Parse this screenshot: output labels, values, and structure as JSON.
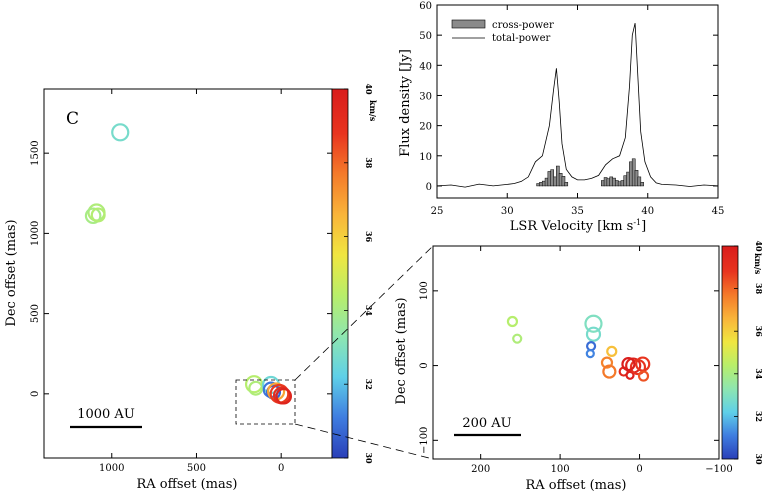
{
  "colors": {
    "axis": "#000000",
    "bar_fill": "#8a8a8a",
    "line": "#000000",
    "colorscale": [
      "#2a3fb8",
      "#3f7de0",
      "#5fd0e8",
      "#8ee6b0",
      "#b8ee6a",
      "#f0e640",
      "#f9b43a",
      "#f47a2a",
      "#e8341f",
      "#d91c1c"
    ]
  },
  "chart_data": [
    {
      "id": "spectrum",
      "type": "bar",
      "xlabel": "LSR Velocity [km s",
      "xlabel_sup": "-1",
      "xlabel_close": "]",
      "ylabel": "Flux density [Jy]",
      "xlim": [
        25,
        45
      ],
      "ylim": [
        -4,
        60
      ],
      "xticks": [
        "25",
        "30",
        "35",
        "40",
        "45"
      ],
      "yticks": [
        "0",
        "10",
        "20",
        "30",
        "40",
        "50",
        "60"
      ],
      "legend": {
        "placement": "top-left",
        "entries": [
          "cross-power",
          "total-power"
        ]
      },
      "series": [
        {
          "name": "cross-power",
          "kind": "bar",
          "bin_width": 0.22,
          "x": [
            32.2,
            32.4,
            32.6,
            32.8,
            33.0,
            33.2,
            33.4,
            33.6,
            33.8,
            34.0,
            34.2,
            36.8,
            37.0,
            37.2,
            37.4,
            37.6,
            37.8,
            38.0,
            38.2,
            38.4,
            38.6,
            38.8,
            39.0,
            39.2,
            39.4,
            39.6
          ],
          "values": [
            0.8,
            1.2,
            1.6,
            2.6,
            4.8,
            5.4,
            3.0,
            6.6,
            4.2,
            3.2,
            1.2,
            1.8,
            2.8,
            2.4,
            3.0,
            2.6,
            1.8,
            1.4,
            1.8,
            3.4,
            4.6,
            8.0,
            9.0,
            5.2,
            3.0,
            1.2
          ]
        },
        {
          "name": "total-power",
          "kind": "line",
          "x": [
            25.0,
            26.0,
            27.0,
            28.0,
            29.0,
            30.0,
            30.5,
            31.0,
            31.5,
            32.0,
            32.5,
            33.0,
            33.3,
            33.5,
            33.7,
            33.9,
            34.2,
            34.6,
            35.0,
            35.5,
            36.0,
            36.5,
            37.0,
            37.5,
            38.0,
            38.4,
            38.7,
            38.9,
            39.1,
            39.3,
            39.5,
            39.8,
            40.2,
            40.6,
            41.0,
            42.0,
            43.0,
            44.0,
            45.0
          ],
          "values": [
            0.0,
            0.3,
            -0.4,
            0.6,
            0.0,
            0.5,
            0.8,
            1.5,
            3.0,
            8.0,
            10.0,
            20.0,
            32.0,
            39.0,
            28.0,
            14.0,
            5.5,
            3.0,
            2.0,
            2.0,
            2.5,
            3.5,
            7.0,
            9.0,
            10.0,
            16.0,
            33.0,
            50.0,
            54.0,
            36.0,
            18.0,
            8.0,
            3.0,
            1.0,
            0.5,
            0.3,
            -0.2,
            0.3,
            0.0
          ]
        }
      ]
    },
    {
      "id": "map-wide",
      "type": "scatter",
      "panel_letter": "C",
      "xlabel": "RA offset (mas)",
      "ylabel": "Dec offset (mas)",
      "xlim": [
        1400,
        -300
      ],
      "ylim": [
        -400,
        1900
      ],
      "xticks": [
        "1000",
        "500",
        "0"
      ],
      "yticks": [
        "0",
        "500",
        "1000",
        "1500"
      ],
      "scalebar_label": "1000 AU",
      "colorbar": {
        "min": 30,
        "max": 40,
        "unit": "km/s",
        "ticks": [
          "30",
          "32",
          "34",
          "36",
          "38",
          "40"
        ]
      },
      "points": [
        {
          "x": 950,
          "y": 1630,
          "v": 32.8,
          "size": 1.0
        },
        {
          "x": 1090,
          "y": 1130,
          "v": 34.2,
          "size": 1.0
        },
        {
          "x": 1110,
          "y": 1110,
          "v": 34.0,
          "size": 0.9
        },
        {
          "x": 1080,
          "y": 1115,
          "v": 34.3,
          "size": 0.8
        },
        {
          "x": 160,
          "y": 60,
          "v": 34.4,
          "size": 1.0
        },
        {
          "x": 150,
          "y": 35,
          "v": 34.2,
          "size": 0.8
        },
        {
          "x": 60,
          "y": 55,
          "v": 32.6,
          "size": 1.0
        },
        {
          "x": 60,
          "y": 25,
          "v": 31.0,
          "size": 0.9
        },
        {
          "x": 45,
          "y": 10,
          "v": 30.6,
          "size": 0.8
        },
        {
          "x": 30,
          "y": 15,
          "v": 37.0,
          "size": 1.0
        },
        {
          "x": 10,
          "y": 0,
          "v": 38.8,
          "size": 1.1
        },
        {
          "x": -5,
          "y": -10,
          "v": 39.2,
          "size": 1.0
        },
        {
          "x": -15,
          "y": -15,
          "v": 39.6,
          "size": 0.9
        }
      ]
    },
    {
      "id": "map-zoom",
      "type": "scatter",
      "xlabel": "RA offset (mas)",
      "ylabel": "Dec offset (mas)",
      "xlim": [
        260,
        -100
      ],
      "ylim": [
        -125,
        160
      ],
      "xticks": [
        "200",
        "100",
        "0",
        "−100"
      ],
      "yticks": [
        "−100",
        "0",
        "100"
      ],
      "scalebar_label": "200 AU",
      "colorbar": {
        "min": 30,
        "max": 40,
        "unit": "km/s",
        "ticks": [
          "30",
          "32",
          "34",
          "36",
          "38",
          "40"
        ]
      },
      "points": [
        {
          "x": 160,
          "y": 59,
          "v": 34.4,
          "size": 0.9
        },
        {
          "x": 154,
          "y": 36,
          "v": 34.2,
          "size": 0.8
        },
        {
          "x": 58,
          "y": 56,
          "v": 33.0,
          "size": 1.6
        },
        {
          "x": 58,
          "y": 42,
          "v": 32.8,
          "size": 1.3
        },
        {
          "x": 61,
          "y": 26,
          "v": 30.8,
          "size": 0.8
        },
        {
          "x": 62,
          "y": 16,
          "v": 31.2,
          "size": 0.7
        },
        {
          "x": 35,
          "y": 19,
          "v": 36.4,
          "size": 0.9
        },
        {
          "x": 41,
          "y": 4,
          "v": 37.6,
          "size": 1.0
        },
        {
          "x": 38,
          "y": -8,
          "v": 37.8,
          "size": 1.2
        },
        {
          "x": 20,
          "y": -8,
          "v": 39.4,
          "size": 0.8
        },
        {
          "x": 12,
          "y": -13,
          "v": 39.8,
          "size": 0.7
        },
        {
          "x": 8,
          "y": 0,
          "v": 39.6,
          "size": 1.4
        },
        {
          "x": 2,
          "y": -2,
          "v": 39.0,
          "size": 1.4
        },
        {
          "x": -4,
          "y": 2,
          "v": 38.9,
          "size": 1.3
        },
        {
          "x": -5,
          "y": -14,
          "v": 38.4,
          "size": 0.9
        },
        {
          "x": 14,
          "y": 2,
          "v": 39.9,
          "size": 1.2
        }
      ]
    }
  ]
}
